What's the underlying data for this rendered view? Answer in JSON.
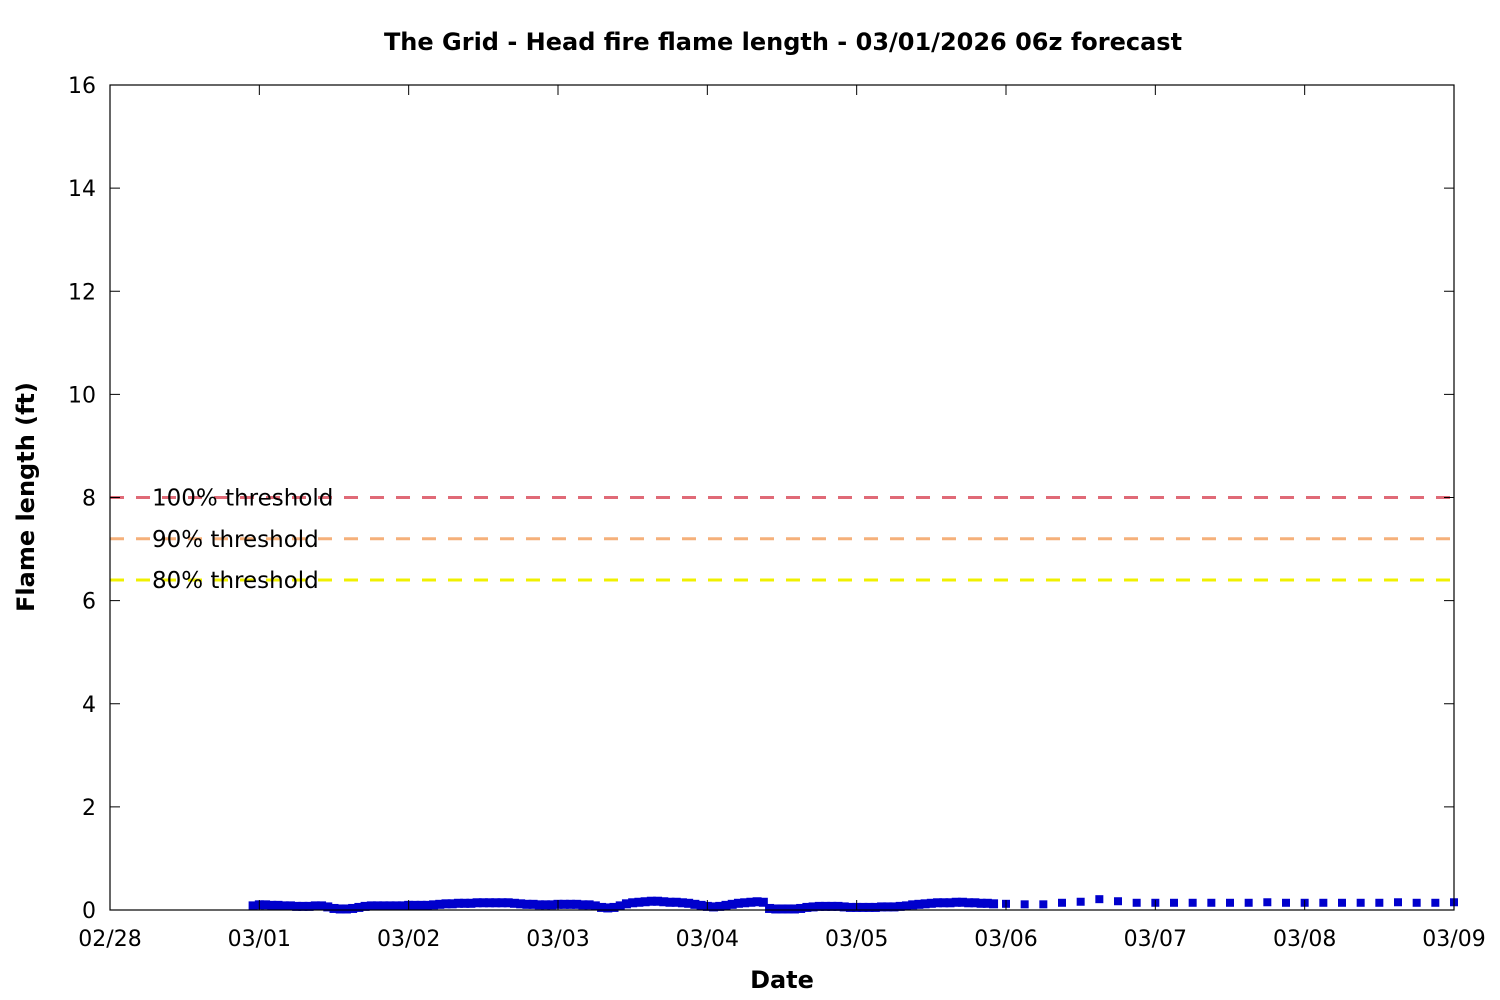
{
  "chart_data": {
    "type": "scatter",
    "title": "The Grid - Head fire flame length - 03/01/2026 06z forecast",
    "xlabel": "Date",
    "ylabel": "Flame length (ft)",
    "x_axis_type": "date",
    "x_ticks": [
      "02/28",
      "03/01",
      "03/02",
      "03/03",
      "03/04",
      "03/05",
      "03/06",
      "03/07",
      "03/08",
      "03/09"
    ],
    "xlim": [
      "02/28 00:00",
      "03/09 00:00"
    ],
    "ylim": [
      0,
      16
    ],
    "y_ticks": [
      "0",
      "2",
      "4",
      "6",
      "8",
      "10",
      "12",
      "14",
      "16"
    ],
    "grid": false,
    "series_color": "#0000cc",
    "thresholds": [
      {
        "label": "100% threshold",
        "value": 8.0,
        "color": "#e06a77"
      },
      {
        "label": "90% threshold",
        "value": 7.2,
        "color": "#f5b07a"
      },
      {
        "label": "80% threshold",
        "value": 6.4,
        "color": "#f0f000"
      }
    ],
    "series": [
      {
        "style": "solid",
        "x": [
          "02/28 23:00",
          "03/01 00:00",
          "03/01 01:00",
          "03/01 02:00",
          "03/01 03:00",
          "03/01 04:00",
          "03/01 05:00",
          "03/01 06:00",
          "03/01 07:00",
          "03/01 08:00",
          "03/01 09:00",
          "03/01 10:00",
          "03/01 11:00",
          "03/01 12:00",
          "03/01 13:00",
          "03/01 14:00",
          "03/01 15:00",
          "03/01 16:00",
          "03/01 17:00",
          "03/01 18:00",
          "03/01 19:00",
          "03/01 20:00",
          "03/01 21:00",
          "03/01 22:00",
          "03/01 23:00",
          "03/02 00:00",
          "03/02 01:00",
          "03/02 02:00",
          "03/02 03:00",
          "03/02 04:00",
          "03/02 05:00",
          "03/02 06:00",
          "03/02 07:00",
          "03/02 08:00",
          "03/02 09:00",
          "03/02 10:00",
          "03/02 11:00",
          "03/02 12:00",
          "03/02 13:00",
          "03/02 14:00",
          "03/02 15:00",
          "03/02 16:00",
          "03/02 17:00",
          "03/02 18:00",
          "03/02 19:00",
          "03/02 20:00",
          "03/02 21:00",
          "03/02 22:00",
          "03/02 23:00",
          "03/03 00:00",
          "03/03 01:00",
          "03/03 02:00",
          "03/03 03:00",
          "03/03 04:00",
          "03/03 05:00",
          "03/03 06:00",
          "03/03 07:00",
          "03/03 08:00",
          "03/03 09:00",
          "03/03 10:00",
          "03/03 11:00",
          "03/03 12:00",
          "03/03 13:00",
          "03/03 14:00",
          "03/03 15:00",
          "03/03 16:00",
          "03/03 17:00",
          "03/03 18:00",
          "03/03 19:00",
          "03/03 20:00",
          "03/03 21:00",
          "03/03 22:00",
          "03/03 23:00",
          "03/04 00:00",
          "03/04 01:00",
          "03/04 02:00",
          "03/04 03:00",
          "03/04 04:00",
          "03/04 05:00",
          "03/04 06:00",
          "03/04 07:00",
          "03/04 08:00",
          "03/04 09:00",
          "03/04 10:00",
          "03/04 11:00",
          "03/04 12:00",
          "03/04 13:00",
          "03/04 14:00",
          "03/04 15:00",
          "03/04 16:00",
          "03/04 17:00",
          "03/04 18:00",
          "03/04 19:00",
          "03/04 20:00",
          "03/04 21:00",
          "03/04 22:00",
          "03/04 23:00",
          "03/05 00:00",
          "03/05 01:00",
          "03/05 02:00",
          "03/05 03:00",
          "03/05 04:00",
          "03/05 05:00",
          "03/05 06:00",
          "03/05 07:00",
          "03/05 08:00",
          "03/05 09:00",
          "03/05 10:00",
          "03/05 11:00",
          "03/05 12:00",
          "03/05 13:00",
          "03/05 14:00",
          "03/05 15:00",
          "03/05 16:00",
          "03/05 17:00",
          "03/05 18:00",
          "03/05 19:00",
          "03/05 20:00",
          "03/05 21:00",
          "03/05 22:00"
        ],
        "y": [
          0.08,
          0.1,
          0.1,
          0.09,
          0.09,
          0.08,
          0.08,
          0.07,
          0.07,
          0.07,
          0.08,
          0.08,
          0.06,
          0.03,
          0.02,
          0.02,
          0.03,
          0.05,
          0.07,
          0.08,
          0.08,
          0.08,
          0.08,
          0.08,
          0.08,
          0.09,
          0.09,
          0.09,
          0.09,
          0.1,
          0.11,
          0.12,
          0.12,
          0.13,
          0.13,
          0.13,
          0.14,
          0.14,
          0.14,
          0.14,
          0.14,
          0.14,
          0.13,
          0.12,
          0.11,
          0.11,
          0.1,
          0.1,
          0.1,
          0.11,
          0.11,
          0.11,
          0.11,
          0.1,
          0.1,
          0.08,
          0.05,
          0.04,
          0.05,
          0.08,
          0.12,
          0.14,
          0.15,
          0.16,
          0.17,
          0.17,
          0.16,
          0.15,
          0.15,
          0.14,
          0.13,
          0.11,
          0.09,
          0.07,
          0.06,
          0.07,
          0.09,
          0.11,
          0.13,
          0.14,
          0.15,
          0.16,
          0.15,
          0.03,
          0.02,
          0.02,
          0.02,
          0.02,
          0.03,
          0.05,
          0.06,
          0.07,
          0.07,
          0.07,
          0.07,
          0.06,
          0.05,
          0.05,
          0.05,
          0.05,
          0.05,
          0.06,
          0.06,
          0.06,
          0.07,
          0.08,
          0.1,
          0.11,
          0.12,
          0.13,
          0.14,
          0.14,
          0.14,
          0.15,
          0.15,
          0.14,
          0.14,
          0.13,
          0.13,
          0.12
        ]
      },
      {
        "style": "dotted",
        "x": [
          "03/06 00:00",
          "03/06 03:00",
          "03/06 06:00",
          "03/06 09:00",
          "03/06 12:00",
          "03/06 15:00",
          "03/06 18:00",
          "03/06 21:00",
          "03/07 00:00",
          "03/07 03:00",
          "03/07 06:00",
          "03/07 09:00",
          "03/07 12:00",
          "03/07 15:00",
          "03/07 18:00",
          "03/07 21:00",
          "03/08 00:00",
          "03/08 03:00",
          "03/08 06:00",
          "03/08 09:00",
          "03/08 12:00",
          "03/08 15:00",
          "03/08 18:00",
          "03/08 21:00",
          "03/09 00:00"
        ],
        "y": [
          0.12,
          0.11,
          0.11,
          0.14,
          0.16,
          0.21,
          0.17,
          0.14,
          0.14,
          0.14,
          0.14,
          0.14,
          0.14,
          0.14,
          0.15,
          0.14,
          0.14,
          0.14,
          0.14,
          0.14,
          0.14,
          0.15,
          0.14,
          0.14,
          0.15
        ]
      }
    ]
  }
}
